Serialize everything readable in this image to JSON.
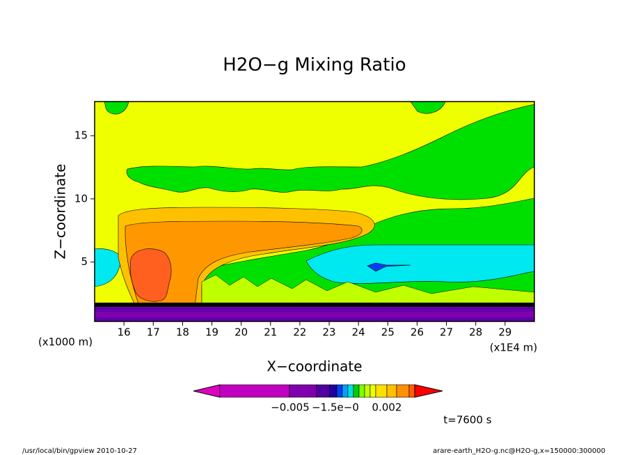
{
  "chart_data": {
    "type": "contour",
    "title": "H2O−g Mixing Ratio",
    "x_label": "X−coordinate",
    "y_label": "Z−coordinate",
    "x_unit_left": "(x1000 m)",
    "x_unit_right": "(x1E4 m)",
    "xlim": [
      15,
      30
    ],
    "xticks": [
      16,
      17,
      18,
      19,
      20,
      21,
      22,
      23,
      24,
      25,
      26,
      27,
      28,
      29
    ],
    "ylim": [
      0.3,
      17.7
    ],
    "yticks": [
      5,
      10,
      15
    ],
    "colorbar": {
      "colors": [
        "#e000c0",
        "#c000c0",
        "#8000b0",
        "#5000a0",
        "#2000a0",
        "#0040f0",
        "#00a0ff",
        "#00e0e0",
        "#00d000",
        "#80ff00",
        "#c0ff00",
        "#f0ff00",
        "#ffe000",
        "#ffc000",
        "#ff9000",
        "#ff6000",
        "#ff0000"
      ],
      "labels": [
        "−0.005",
        "−1.5e−0",
        "0.002"
      ]
    },
    "time_label": "t=7600 s",
    "footer_left": "/usr/local/bin/gpview  2010-10-27",
    "footer_right": "arare-earth_H2O-g.nc@H2O-g,x=150000:300000"
  }
}
